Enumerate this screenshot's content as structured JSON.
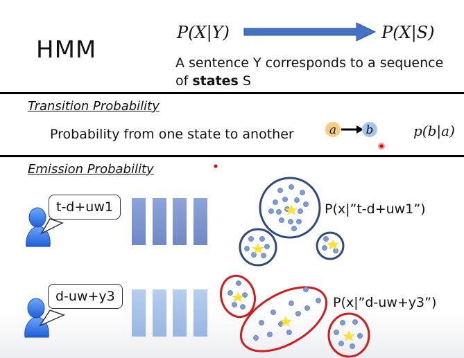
{
  "header": {
    "title": "HMM",
    "p_x_given_y": "P(X|Y)",
    "p_x_given_s": "P(X|S)",
    "sentence_line1": "A sentence Y corresponds to a sequence",
    "sentence_of": "of ",
    "sentence_states": "states",
    "sentence_s": " S"
  },
  "transition": {
    "title": "Transition Probability",
    "description": "Probability from one state to another",
    "node_a": "a",
    "node_b": "b",
    "formula": "p(b|a)"
  },
  "emission": {
    "title": "Emission Probability",
    "speaker1_label": "t-d+uw1",
    "speaker2_label": "d-uw+y3",
    "prob1": "P(x|”t-d+uw1”)",
    "prob2": "P(x|”d-uw+y3”)"
  },
  "colors": {
    "arrow_fill": "#4472c4",
    "frame_blue_dark": "#7f95cf",
    "frame_blue_light": "#a9c2e8",
    "cluster_navy": "#2f4a7a",
    "cluster_red": "#d01c1c",
    "dot_blue": "#7f9bd6",
    "star_yellow": "#ffe135",
    "node_a": "#f5cf7f",
    "node_b": "#a9c4ea"
  }
}
